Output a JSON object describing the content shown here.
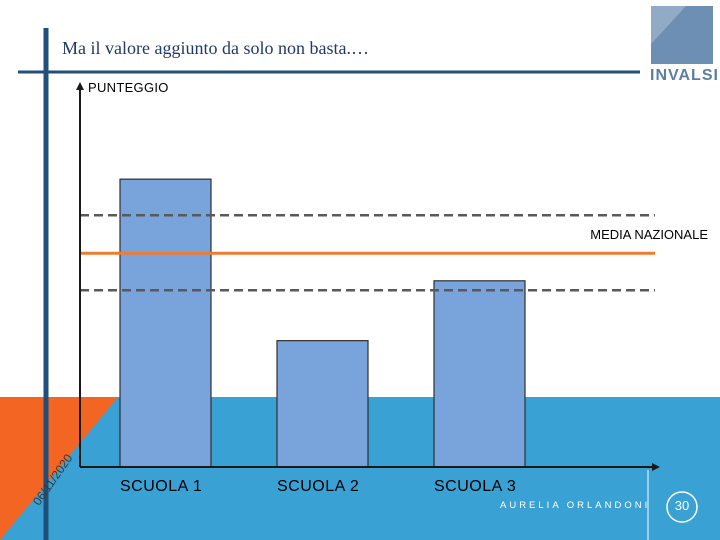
{
  "slide": {
    "title": "Ma il valore aggiunto da solo non basta.…",
    "logo_text": "INVALSI",
    "author": "AURELIA ORLANDONI",
    "date": "06/11/2020",
    "page_number": "30"
  },
  "colors": {
    "bar_fill": "#79a3db",
    "bar_stroke": "#2f2f2f",
    "reference_line": "#ed7d31",
    "band_line": "#595959",
    "accent_blue": "#3aa1d4",
    "accent_orange": "#f26522",
    "title_rule": "#1f4f7a",
    "logo": "#5b7fa3"
  },
  "chart_data": {
    "type": "bar",
    "title": "",
    "xlabel": "",
    "ylabel": "PUNTEGGIO",
    "categories": [
      "SCUOLA 1",
      "SCUOLA 2",
      "SCUOLA 3"
    ],
    "values": [
      303,
      133,
      196
    ],
    "ylim": [
      0,
      400
    ],
    "reference_line": {
      "label": "MEDIA NAZIONALE",
      "value": 225
    },
    "band": {
      "upper": 265,
      "lower": 186
    },
    "grid": false,
    "legend": "none"
  }
}
